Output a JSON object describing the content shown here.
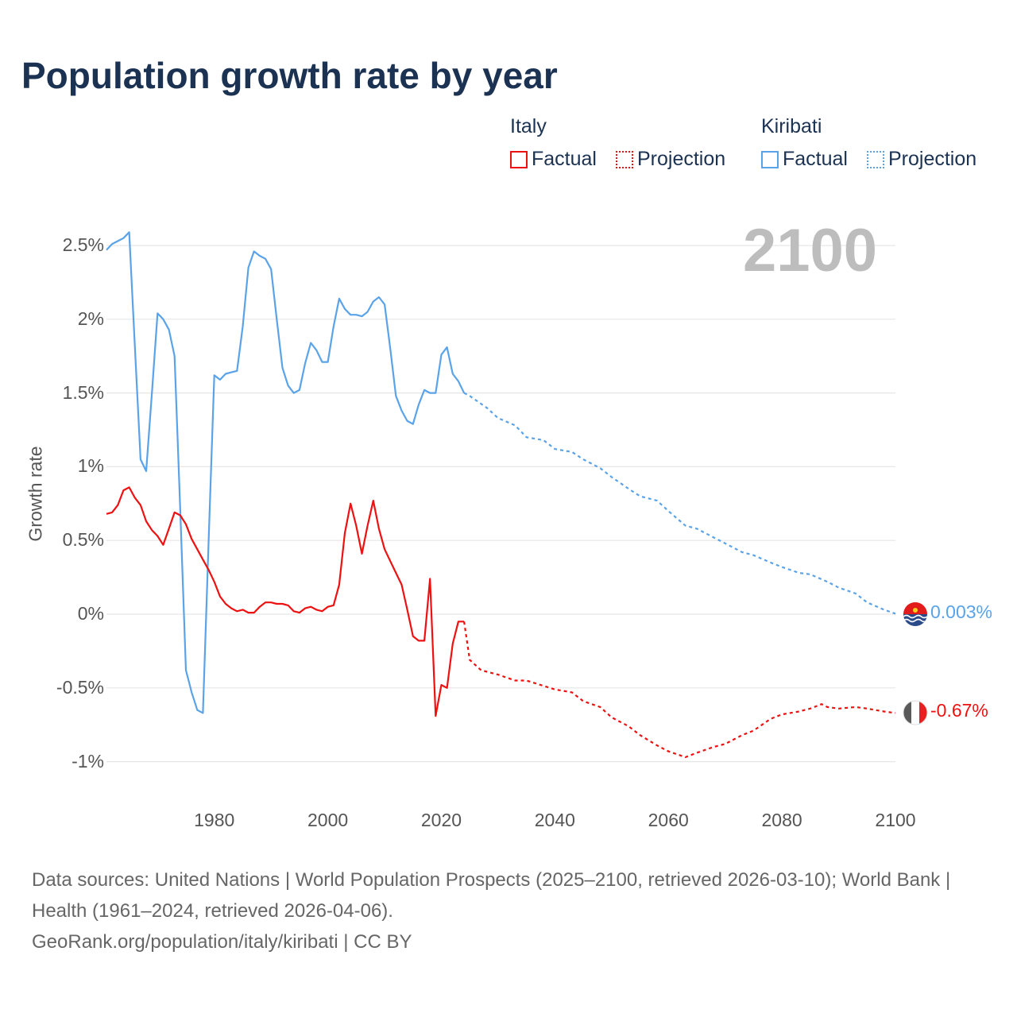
{
  "title": "Population growth rate by year",
  "year_label": "2100",
  "legend": {
    "groups": [
      {
        "name": "Italy",
        "factual": "Factual",
        "projection": "Projection",
        "color": "#ee1111"
      },
      {
        "name": "Kiribati",
        "factual": "Factual",
        "projection": "Projection",
        "color": "#5ba3e8"
      }
    ]
  },
  "end_labels": {
    "kiribati": "0.003%",
    "italy": "-0.67%"
  },
  "footer": {
    "sources": "Data sources: United Nations | World Population Prospects (2025–2100, retrieved 2026-03-10); World Bank | Health (1961–2024, retrieved 2026-04-06).",
    "credit": "GeoRank.org/population/italy/kiribati | CC BY"
  },
  "chart_data": {
    "type": "line",
    "title": "Population growth rate by year",
    "xlabel": "",
    "ylabel": "Growth rate",
    "xlim": [
      1961,
      2100
    ],
    "ylim": [
      -1.1,
      2.75
    ],
    "x_ticks": [
      "1980",
      "2000",
      "2020",
      "2040",
      "2060",
      "2080",
      "2100"
    ],
    "y_ticks": [
      {
        "v": 2.5,
        "label": "2.5%"
      },
      {
        "v": 2,
        "label": "2%"
      },
      {
        "v": 1.5,
        "label": "1.5%"
      },
      {
        "v": 1,
        "label": "1%"
      },
      {
        "v": 0.5,
        "label": "0.5%"
      },
      {
        "v": 0,
        "label": "0%"
      },
      {
        "v": -0.5,
        "label": "-0.5%"
      },
      {
        "v": -1,
        "label": "-1%"
      }
    ],
    "grid": true,
    "series": [
      {
        "name": "Kiribati",
        "color": "#5ba3e8",
        "factual": {
          "x": [
            1961,
            1962,
            1963,
            1964,
            1965,
            1966,
            1967,
            1968,
            1969,
            1970,
            1971,
            1972,
            1973,
            1974,
            1975,
            1976,
            1977,
            1978,
            1979,
            1980,
            1981,
            1982,
            1983,
            1984,
            1985,
            1986,
            1987,
            1988,
            1989,
            1990,
            1991,
            1992,
            1993,
            1994,
            1995,
            1996,
            1997,
            1998,
            1999,
            2000,
            2001,
            2002,
            2003,
            2004,
            2005,
            2006,
            2007,
            2008,
            2009,
            2010,
            2011,
            2012,
            2013,
            2014,
            2015,
            2016,
            2017,
            2018,
            2019,
            2020,
            2021,
            2022,
            2023,
            2024
          ],
          "y": [
            2.47,
            2.51,
            2.53,
            2.55,
            2.59,
            1.82,
            1.05,
            0.97,
            1.5,
            2.04,
            2.0,
            1.93,
            1.75,
            0.7,
            -0.38,
            -0.53,
            -0.65,
            -0.67,
            0.5,
            1.62,
            1.59,
            1.63,
            1.64,
            1.65,
            1.95,
            2.35,
            2.46,
            2.43,
            2.41,
            2.34,
            2.0,
            1.67,
            1.55,
            1.5,
            1.52,
            1.7,
            1.84,
            1.79,
            1.71,
            1.71,
            1.95,
            2.14,
            2.07,
            2.03,
            2.03,
            2.02,
            2.05,
            2.12,
            2.15,
            2.1,
            1.8,
            1.48,
            1.38,
            1.31,
            1.29,
            1.42,
            1.52,
            1.5,
            1.5,
            1.76,
            1.81,
            1.63,
            1.58,
            1.5
          ]
        },
        "projection": {
          "x": [
            2024,
            2025,
            2028,
            2030,
            2033,
            2035,
            2038,
            2040,
            2043,
            2045,
            2048,
            2050,
            2053,
            2055,
            2058,
            2060,
            2063,
            2065,
            2068,
            2070,
            2073,
            2075,
            2078,
            2080,
            2083,
            2085,
            2088,
            2090,
            2093,
            2095,
            2098,
            2100
          ],
          "y": [
            1.5,
            1.48,
            1.4,
            1.33,
            1.28,
            1.2,
            1.18,
            1.12,
            1.1,
            1.05,
            0.99,
            0.93,
            0.85,
            0.8,
            0.77,
            0.7,
            0.6,
            0.58,
            0.52,
            0.48,
            0.42,
            0.4,
            0.35,
            0.32,
            0.28,
            0.27,
            0.22,
            0.18,
            0.14,
            0.08,
            0.03,
            0.003
          ]
        }
      },
      {
        "name": "Italy",
        "color": "#ee1111",
        "factual": {
          "x": [
            1961,
            1962,
            1963,
            1964,
            1965,
            1966,
            1967,
            1968,
            1969,
            1970,
            1971,
            1972,
            1973,
            1974,
            1975,
            1976,
            1977,
            1978,
            1979,
            1980,
            1981,
            1982,
            1983,
            1984,
            1985,
            1986,
            1987,
            1988,
            1989,
            1990,
            1991,
            1992,
            1993,
            1994,
            1995,
            1996,
            1997,
            1998,
            1999,
            2000,
            2001,
            2002,
            2003,
            2004,
            2005,
            2006,
            2007,
            2008,
            2009,
            2010,
            2011,
            2012,
            2013,
            2014,
            2015,
            2016,
            2017,
            2018,
            2019,
            2020,
            2021,
            2022,
            2023,
            2024
          ],
          "y": [
            0.68,
            0.69,
            0.74,
            0.84,
            0.86,
            0.79,
            0.74,
            0.63,
            0.57,
            0.53,
            0.47,
            0.58,
            0.69,
            0.67,
            0.61,
            0.51,
            0.44,
            0.37,
            0.3,
            0.22,
            0.12,
            0.07,
            0.04,
            0.02,
            0.03,
            0.01,
            0.01,
            0.05,
            0.08,
            0.08,
            0.07,
            0.07,
            0.06,
            0.02,
            0.01,
            0.04,
            0.05,
            0.03,
            0.02,
            0.05,
            0.06,
            0.2,
            0.55,
            0.75,
            0.6,
            0.41,
            0.6,
            0.77,
            0.58,
            0.44,
            0.36,
            0.28,
            0.2,
            0.03,
            -0.15,
            -0.18,
            -0.18,
            0.24,
            -0.69,
            -0.48,
            -0.5,
            -0.2,
            -0.05,
            -0.05
          ]
        },
        "projection": {
          "x": [
            2024,
            2025,
            2027,
            2030,
            2033,
            2035,
            2040,
            2043,
            2045,
            2048,
            2050,
            2053,
            2055,
            2058,
            2060,
            2063,
            2065,
            2068,
            2070,
            2073,
            2075,
            2078,
            2080,
            2083,
            2085,
            2087,
            2088,
            2090,
            2093,
            2095,
            2098,
            2100
          ],
          "y": [
            -0.05,
            -0.31,
            -0.38,
            -0.41,
            -0.45,
            -0.45,
            -0.51,
            -0.53,
            -0.59,
            -0.63,
            -0.7,
            -0.76,
            -0.82,
            -0.89,
            -0.93,
            -0.97,
            -0.94,
            -0.9,
            -0.88,
            -0.82,
            -0.79,
            -0.71,
            -0.68,
            -0.66,
            -0.64,
            -0.61,
            -0.63,
            -0.64,
            -0.63,
            -0.64,
            -0.66,
            -0.67
          ]
        }
      }
    ]
  }
}
